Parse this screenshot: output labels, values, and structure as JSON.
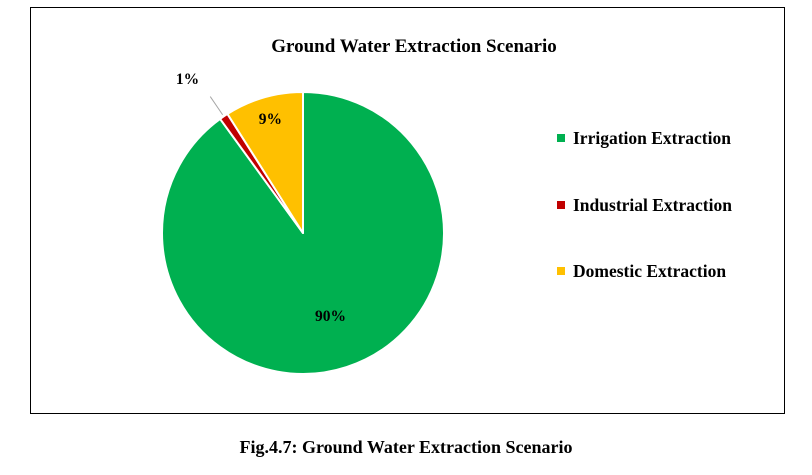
{
  "chart_data": {
    "type": "pie",
    "title": "Ground Water Extraction Scenario",
    "categories": [
      "Irrigation Extraction",
      "Industrial Extraction",
      "Domestic Extraction"
    ],
    "values": [
      90,
      1,
      9
    ],
    "data_labels": [
      "90%",
      "1%",
      "9%"
    ],
    "colors": [
      "#00b050",
      "#c00000",
      "#ffc000"
    ],
    "start_angle": "12 o'clock",
    "direction": "clockwise",
    "legend_position": "right"
  },
  "caption": "Fig.4.7: Ground Water Extraction Scenario"
}
